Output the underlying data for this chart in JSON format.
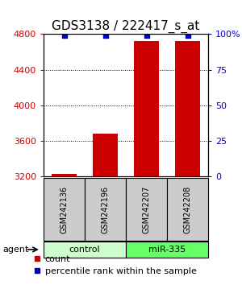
{
  "title": "GDS3138 / 222417_s_at",
  "samples": [
    "GSM242136",
    "GSM242196",
    "GSM242207",
    "GSM242208"
  ],
  "counts": [
    3230,
    3680,
    4720,
    4720
  ],
  "percentiles": [
    99,
    99,
    99,
    99
  ],
  "y_min": 3200,
  "y_max": 4800,
  "y_ticks": [
    3200,
    3600,
    4000,
    4400,
    4800
  ],
  "y2_ticks": [
    0,
    25,
    50,
    75,
    100
  ],
  "y2_tick_labels": [
    "0",
    "25",
    "50",
    "75",
    "100%"
  ],
  "bar_color": "#cc0000",
  "dot_color": "#0000cc",
  "bar_width": 0.6,
  "groups": [
    {
      "label": "control",
      "samples": [
        0,
        1
      ],
      "color": "#ccffcc"
    },
    {
      "label": "miR-335",
      "samples": [
        2,
        3
      ],
      "color": "#66ff66"
    }
  ],
  "agent_label": "agent",
  "grid_color": "#000000",
  "sample_box_color": "#cccccc",
  "title_fontsize": 11,
  "tick_fontsize": 8,
  "legend_fontsize": 8
}
